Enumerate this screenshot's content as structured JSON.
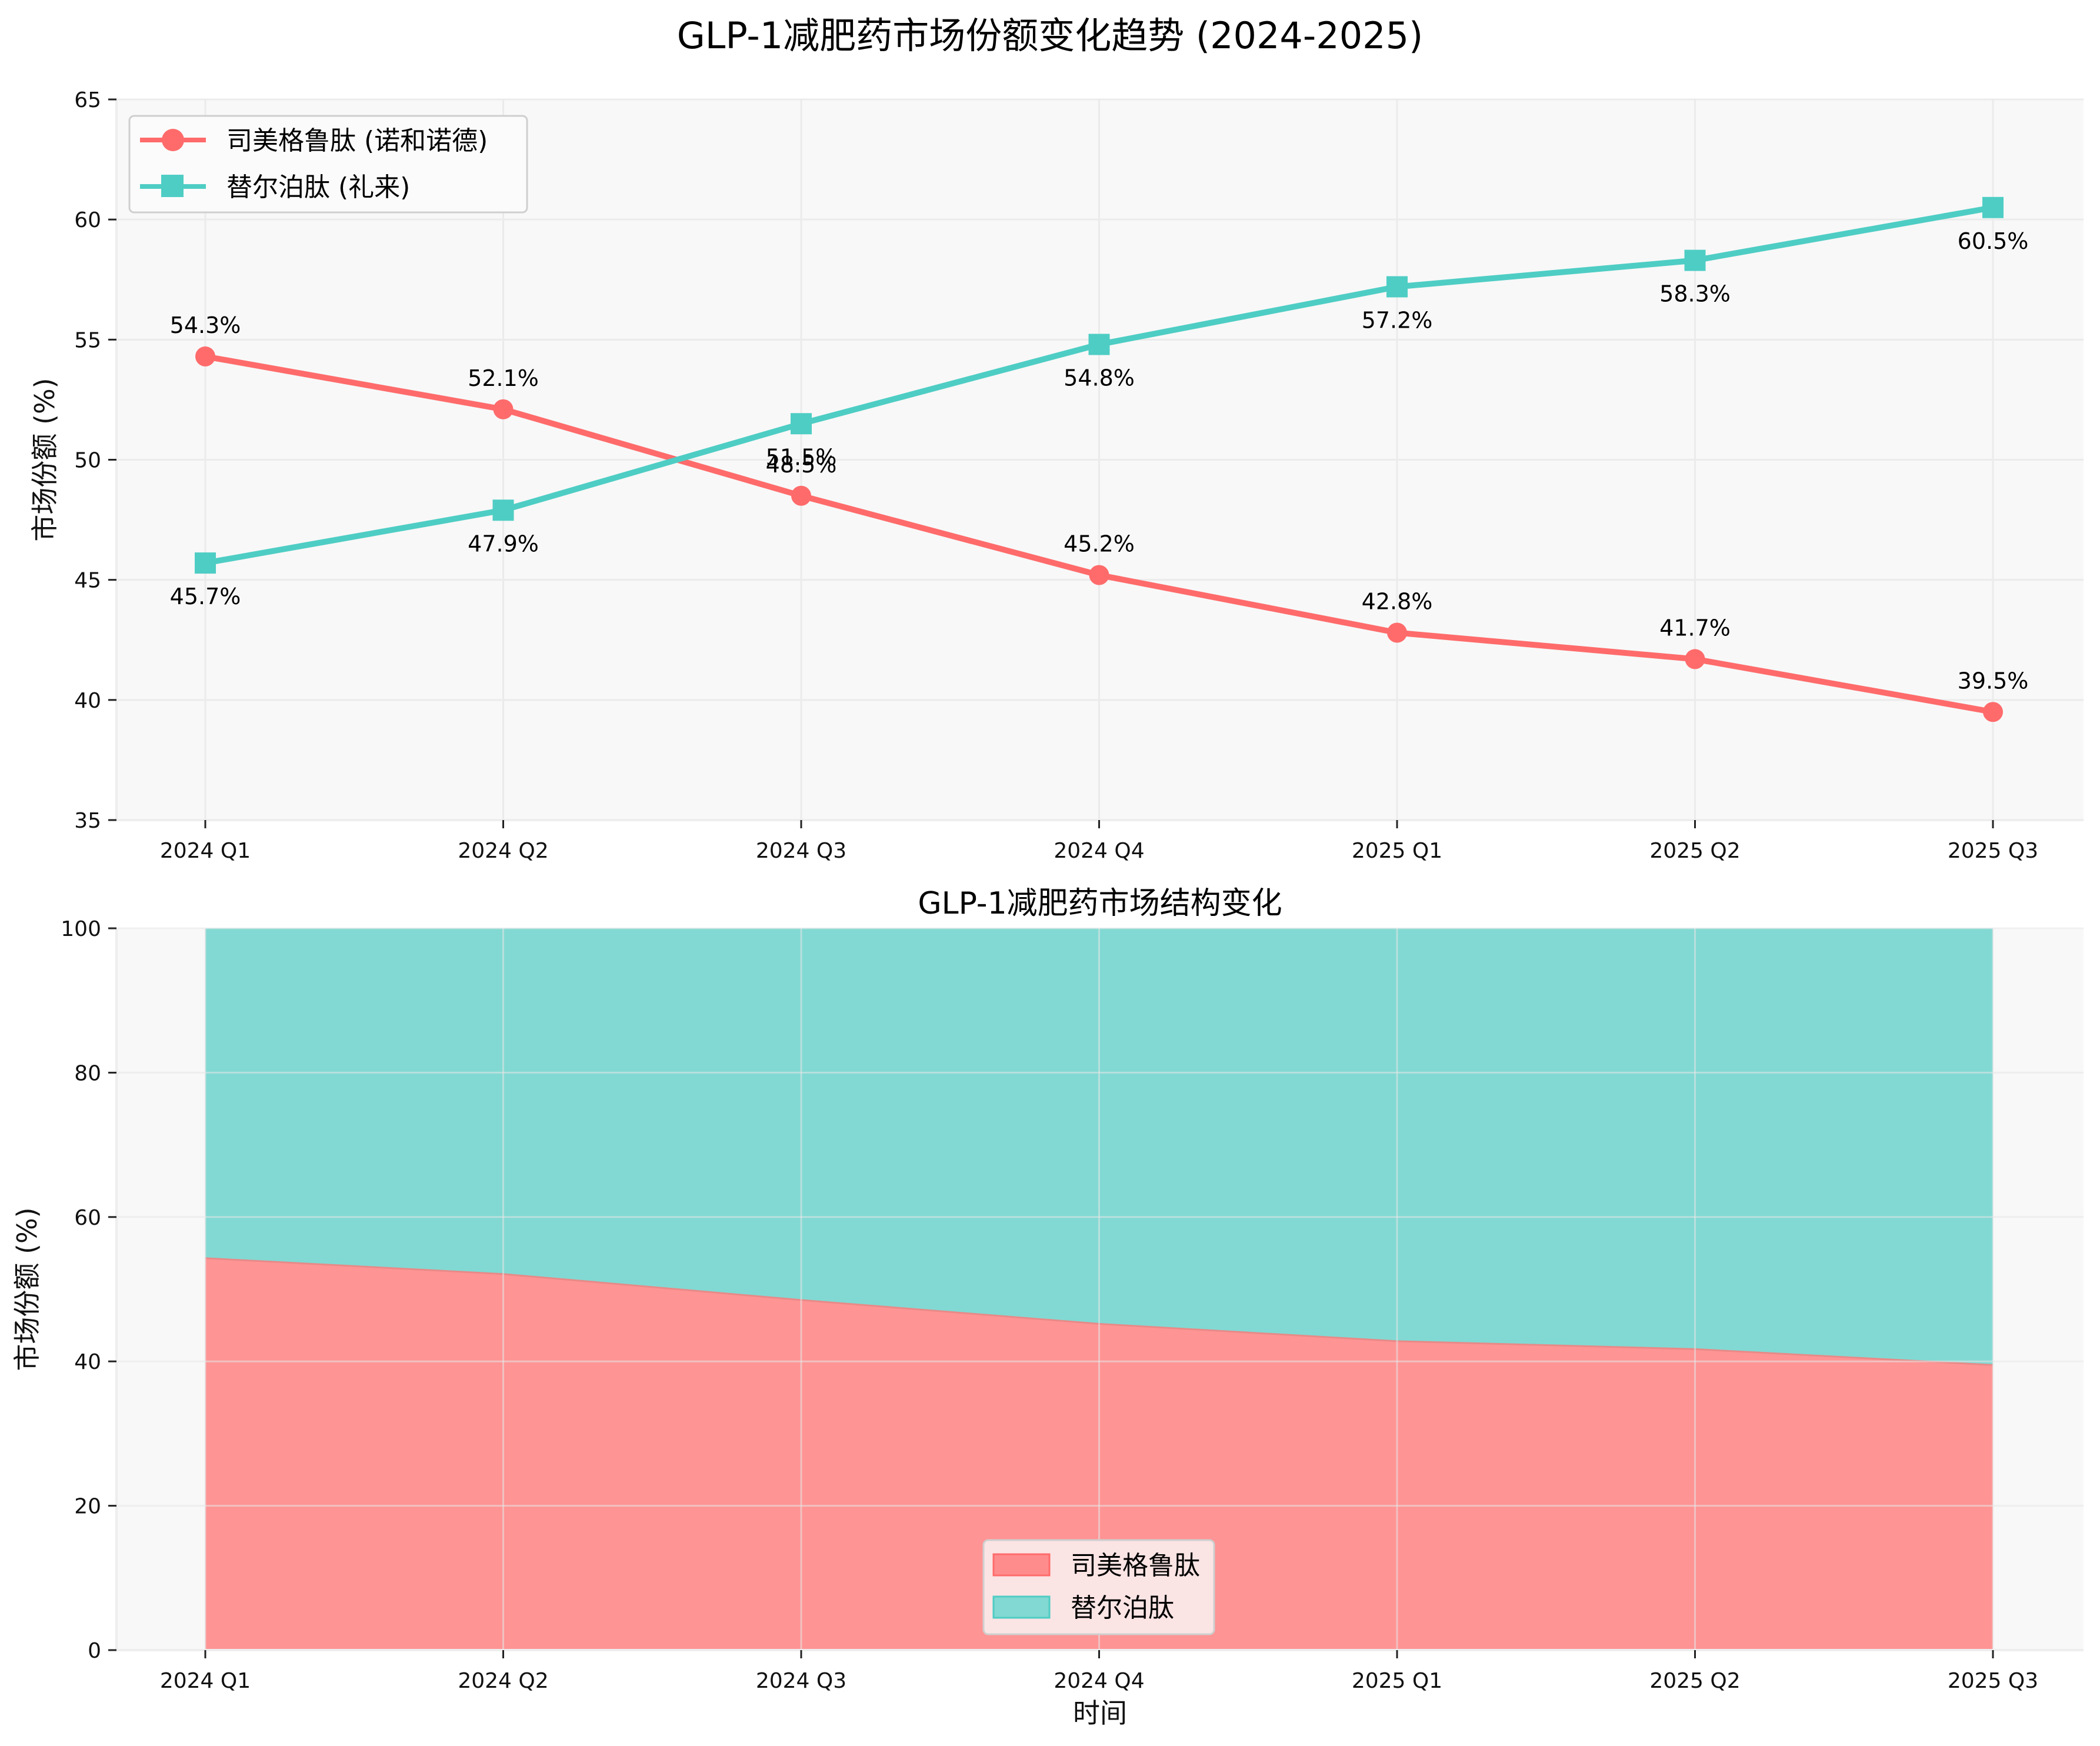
{
  "figure": {
    "title": "GLP-1减肥药市场份额变化趋势 (2024-2025)"
  },
  "colors": {
    "semaglutide": "#FF6B6B",
    "tirzepatide": "#4ECDC4",
    "plot_bg": "#F8F8F8",
    "grid": "#EBEBEB"
  },
  "chart_data": [
    {
      "type": "line",
      "title": "",
      "categories": [
        "2024 Q1",
        "2024 Q2",
        "2024 Q3",
        "2024 Q4",
        "2025 Q1",
        "2025 Q2",
        "2025 Q3"
      ],
      "series": [
        {
          "name": "司美格鲁肽 (诺和诺德)",
          "marker": "circle",
          "values": [
            54.3,
            52.1,
            48.5,
            45.2,
            42.8,
            41.7,
            39.5
          ],
          "labels": [
            "54.3%",
            "52.1%",
            "48.5%",
            "45.2%",
            "42.8%",
            "41.7%",
            "39.5%"
          ]
        },
        {
          "name": "替尔泊肽 (礼来)",
          "marker": "square",
          "values": [
            45.7,
            47.9,
            51.5,
            54.8,
            57.2,
            58.3,
            60.5
          ],
          "labels": [
            "45.7%",
            "47.9%",
            "51.5%",
            "54.8%",
            "57.2%",
            "58.3%",
            "60.5%"
          ]
        }
      ],
      "xlabel": "",
      "ylabel": "市场份额 (%)",
      "ylim": [
        35,
        65
      ],
      "yticks": [
        "35",
        "40",
        "45",
        "50",
        "55",
        "60",
        "65"
      ],
      "grid": true,
      "legend_position": "upper left"
    },
    {
      "type": "area",
      "stacked": true,
      "title": "GLP-1减肥药市场结构变化",
      "categories": [
        "2024 Q1",
        "2024 Q2",
        "2024 Q3",
        "2024 Q4",
        "2025 Q1",
        "2025 Q2",
        "2025 Q3"
      ],
      "series": [
        {
          "name": "司美格鲁肽",
          "values": [
            54.3,
            52.1,
            48.5,
            45.2,
            42.8,
            41.7,
            39.5
          ]
        },
        {
          "name": "替尔泊肽",
          "values": [
            45.7,
            47.9,
            51.5,
            54.8,
            57.2,
            58.3,
            60.5
          ]
        }
      ],
      "xlabel": "时间",
      "ylabel": "市场份额 (%)",
      "ylim": [
        0,
        100
      ],
      "yticks": [
        "0",
        "20",
        "40",
        "60",
        "80",
        "100"
      ],
      "grid": true,
      "legend_position": "lower center"
    }
  ]
}
